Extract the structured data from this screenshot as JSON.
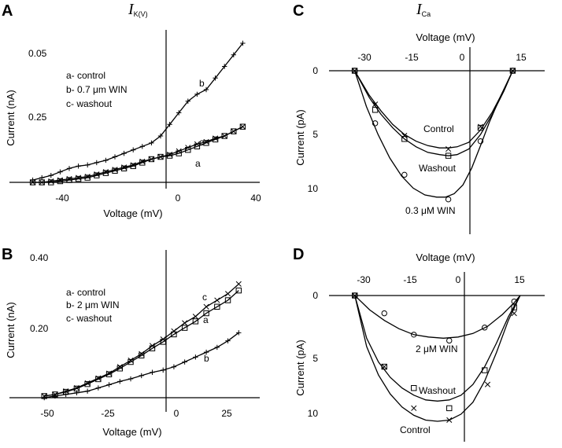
{
  "chart_data": [
    {
      "id": "A",
      "type": "line",
      "panel_label": "A",
      "title": "I",
      "title_subscript": "K(V)",
      "xlabel": "Voltage (mV)",
      "ylabel": "Current (nA)",
      "xlim": [
        -60,
        40
      ],
      "ylim": [
        0,
        0.6
      ],
      "x_ticks": [
        -40,
        0,
        40
      ],
      "y_tick_labels": [
        "0.05",
        "0.25"
      ],
      "legend": [
        "a- control",
        "b- 0.7 μm WIN",
        "c- washout"
      ],
      "series": [
        {
          "name": "b",
          "label": "b",
          "marker": "plus",
          "x": [
            -56,
            -52,
            -48,
            -44,
            -40,
            -36,
            -32,
            -28,
            -24,
            -20,
            -16,
            -12,
            -8,
            -4,
            0,
            4,
            8,
            12,
            16,
            20,
            24,
            28,
            32,
            36
          ],
          "y": [
            0.01,
            0.02,
            0.03,
            0.045,
            0.06,
            0.07,
            0.075,
            0.085,
            0.095,
            0.11,
            0.125,
            0.14,
            0.155,
            0.17,
            0.2,
            0.25,
            0.3,
            0.35,
            0.38,
            0.4,
            0.45,
            0.5,
            0.55,
            0.6
          ]
        },
        {
          "name": "a",
          "label": "a",
          "marker": "square",
          "x": [
            -56,
            -52,
            -48,
            -44,
            -40,
            -36,
            -32,
            -28,
            -24,
            -20,
            -16,
            -12,
            -8,
            -4,
            0,
            4,
            8,
            12,
            16,
            20,
            24,
            28,
            32,
            36
          ],
          "y": [
            0,
            0,
            0,
            0.005,
            0.01,
            0.015,
            0.02,
            0.03,
            0.04,
            0.05,
            0.06,
            0.07,
            0.085,
            0.1,
            0.11,
            0.115,
            0.125,
            0.14,
            0.155,
            0.17,
            0.185,
            0.2,
            0.22,
            0.24
          ]
        },
        {
          "name": "c",
          "label": "c",
          "marker": "x",
          "x": [
            -56,
            -52,
            -48,
            -44,
            -40,
            -36,
            -32,
            -28,
            -24,
            -20,
            -16,
            -12,
            -8,
            -4,
            0,
            4,
            8,
            12,
            16,
            20,
            24,
            28,
            32,
            36
          ],
          "y": [
            0,
            0,
            0.005,
            0.01,
            0.015,
            0.02,
            0.025,
            0.035,
            0.045,
            0.055,
            0.065,
            0.075,
            0.09,
            0.1,
            0.11,
            0.12,
            0.135,
            0.15,
            0.165,
            0.175,
            0.19,
            0.2,
            0.22,
            0.24
          ]
        }
      ]
    },
    {
      "id": "B",
      "type": "line",
      "panel_label": "B",
      "xlabel": "Voltage (mV)",
      "ylabel": "Current (nA)",
      "xlim": [
        -62,
        40
      ],
      "ylim": [
        0,
        0.45
      ],
      "x_ticks": [
        -50,
        -25,
        0,
        25
      ],
      "y_tick_labels": [
        "0.40",
        "0.20"
      ],
      "legend": [
        "a- control",
        "b- 2 μm WIN",
        "c- washout"
      ],
      "series": [
        {
          "name": "c",
          "label": "c",
          "marker": "x",
          "x": [
            -55,
            -50,
            -45,
            -40,
            -35,
            -30,
            -25,
            -20,
            -15,
            -10,
            -5,
            0,
            5,
            10,
            15,
            20,
            25,
            30,
            35
          ],
          "y": [
            0.005,
            0.01,
            0.02,
            0.03,
            0.045,
            0.06,
            0.075,
            0.095,
            0.115,
            0.135,
            0.16,
            0.18,
            0.205,
            0.23,
            0.25,
            0.28,
            0.3,
            0.32,
            0.35
          ]
        },
        {
          "name": "a",
          "label": "a",
          "marker": "square",
          "x": [
            -55,
            -50,
            -45,
            -40,
            -35,
            -30,
            -25,
            -20,
            -15,
            -10,
            -5,
            0,
            5,
            10,
            15,
            20,
            25,
            30,
            35
          ],
          "y": [
            0.005,
            0.01,
            0.018,
            0.028,
            0.042,
            0.057,
            0.072,
            0.09,
            0.11,
            0.13,
            0.152,
            0.172,
            0.195,
            0.215,
            0.235,
            0.26,
            0.28,
            0.3,
            0.33
          ]
        },
        {
          "name": "b",
          "label": "b",
          "marker": "plus",
          "x": [
            -55,
            -50,
            -45,
            -40,
            -35,
            -30,
            -25,
            -20,
            -15,
            -10,
            -5,
            0,
            5,
            10,
            15,
            20,
            25,
            30,
            35
          ],
          "y": [
            0,
            0.005,
            0.01,
            0.015,
            0.02,
            0.03,
            0.04,
            0.05,
            0.058,
            0.068,
            0.078,
            0.085,
            0.095,
            0.11,
            0.125,
            0.14,
            0.155,
            0.175,
            0.2
          ]
        }
      ]
    },
    {
      "id": "C",
      "type": "line",
      "panel_label": "C",
      "title": "I",
      "title_subscript": "Ca",
      "xlabel": "Voltage (mV)",
      "ylabel": "Current (pA)",
      "xlim": [
        -42,
        22
      ],
      "ylim": [
        0,
        13
      ],
      "y_inverted": true,
      "x_ticks": [
        -30,
        -15,
        0,
        15
      ],
      "y_ticks": [
        0,
        5,
        10
      ],
      "series": [
        {
          "name": "Control",
          "label": "Control",
          "marker": "x",
          "x": [
            -37,
            -30,
            -20,
            -5,
            6,
            17
          ],
          "y": [
            0,
            3,
            5.8,
            7,
            5,
            0
          ],
          "curve_x": [
            -37,
            -32,
            -28,
            -24,
            -20,
            -16,
            -12,
            -8,
            -5,
            -2,
            2,
            6,
            10,
            14,
            17
          ],
          "curve_y": [
            0,
            2.2,
            3.6,
            4.8,
            5.7,
            6.3,
            6.7,
            6.9,
            6.9,
            6.8,
            6.4,
            5.3,
            3.7,
            1.7,
            0
          ]
        },
        {
          "name": "Washout",
          "label": "Washout",
          "marker": "square",
          "x": [
            -37,
            -30,
            -20,
            -5,
            6,
            17
          ],
          "y": [
            0,
            3.5,
            6.1,
            7.6,
            5.1,
            0
          ],
          "curve_x": [
            -37,
            -32,
            -28,
            -24,
            -20,
            -16,
            -12,
            -8,
            -5,
            -2,
            2,
            6,
            10,
            14,
            17
          ],
          "curve_y": [
            0,
            2.4,
            3.9,
            5.1,
            6.1,
            6.8,
            7.3,
            7.5,
            7.6,
            7.5,
            7.0,
            5.7,
            3.9,
            1.8,
            0
          ]
        },
        {
          "name": "0.3 μM WIN",
          "label": "0.3 μM WIN",
          "marker": "circle",
          "x": [
            -37,
            -30,
            -20,
            -5,
            6,
            17
          ],
          "y": [
            0,
            4.7,
            9.3,
            11.5,
            6.3,
            0
          ],
          "curve_x": [
            -37,
            -33,
            -29,
            -25,
            -21,
            -17,
            -13,
            -9,
            -6,
            -3,
            0,
            3,
            6,
            9,
            13,
            17
          ],
          "curve_y": [
            0,
            3.2,
            5.7,
            7.8,
            9.4,
            10.5,
            11.1,
            11.3,
            11.3,
            11.0,
            10.2,
            8.7,
            6.7,
            4.6,
            2.2,
            0
          ]
        }
      ]
    },
    {
      "id": "D",
      "type": "line",
      "panel_label": "D",
      "xlabel": "Voltage (mV)",
      "ylabel": "Current (pA)",
      "xlim": [
        -42,
        22
      ],
      "ylim": [
        0,
        11
      ],
      "y_inverted": true,
      "x_ticks": [
        -30,
        -15,
        0,
        15
      ],
      "y_ticks": [
        0,
        5,
        10
      ],
      "series": [
        {
          "name": "2 μM WIN",
          "label": "2 μM WIN",
          "marker": "circle",
          "x": [
            -37,
            -27,
            -17,
            -5,
            7,
            17
          ],
          "y": [
            0,
            1.5,
            3.3,
            3.8,
            2.7,
            0.5
          ],
          "curve_x": [
            -37,
            -32,
            -27,
            -22,
            -17,
            -12,
            -7,
            -2,
            3,
            8,
            13,
            17,
            19
          ],
          "curve_y": [
            0,
            1.2,
            2.1,
            2.8,
            3.3,
            3.5,
            3.6,
            3.5,
            3.2,
            2.6,
            1.6,
            0.6,
            0
          ]
        },
        {
          "name": "Washout",
          "label": "Washout",
          "marker": "square",
          "x": [
            -37,
            -27,
            -17,
            -5,
            7,
            17
          ],
          "y": [
            0,
            6,
            7.8,
            9.5,
            6.3,
            1
          ],
          "curve_x": [
            -37,
            -33,
            -29,
            -25,
            -21,
            -17,
            -13,
            -9,
            -5,
            -1,
            3,
            7,
            11,
            15,
            19
          ],
          "curve_y": [
            0,
            3.6,
            5.6,
            6.9,
            7.8,
            8.4,
            8.8,
            8.9,
            8.8,
            8.4,
            7.5,
            6.0,
            4.0,
            1.8,
            0
          ]
        },
        {
          "name": "Control",
          "label": "Control",
          "marker": "x",
          "x": [
            -37,
            -27,
            -17,
            -5,
            8,
            17
          ],
          "y": [
            0,
            6,
            9.5,
            10.5,
            7.5,
            1.5
          ],
          "curve_x": [
            -37,
            -33,
            -29,
            -25,
            -21,
            -17,
            -13,
            -9,
            -5,
            -1,
            3,
            7,
            11,
            15,
            19
          ],
          "curve_y": [
            0,
            4.3,
            6.7,
            8.3,
            9.4,
            10.1,
            10.5,
            10.6,
            10.5,
            10.0,
            9.0,
            7.2,
            4.8,
            2.1,
            0
          ]
        }
      ]
    }
  ]
}
